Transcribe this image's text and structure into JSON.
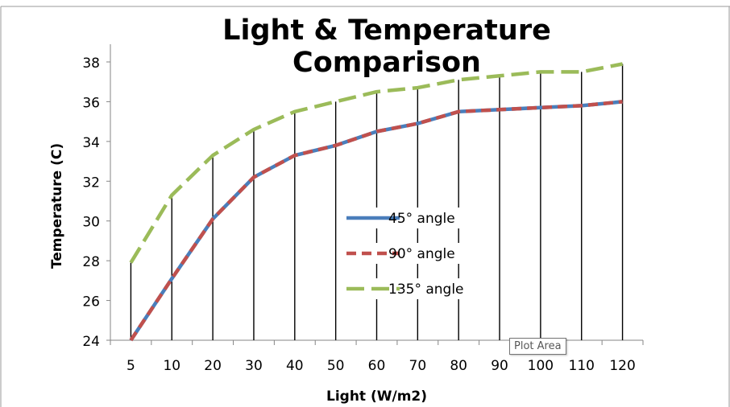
{
  "chart_data": {
    "type": "line",
    "title": "Light & Temperature Comparison",
    "xlabel": "Light (W/m2)",
    "ylabel": "Temperature  (C)",
    "categories": [
      "5",
      "10",
      "20",
      "30",
      "40",
      "50",
      "60",
      "70",
      "80",
      "90",
      "100",
      "110",
      "120"
    ],
    "ylim": [
      24,
      38
    ],
    "yticks": [
      24,
      26,
      28,
      30,
      32,
      34,
      36,
      38
    ],
    "grid": false,
    "drop_lines": true,
    "legend_position": "center",
    "series": [
      {
        "name": "45° angle",
        "color": "#4A7EBB",
        "dash": "solid",
        "values": [
          24.0,
          27.1,
          30.1,
          32.2,
          33.3,
          33.8,
          34.5,
          34.9,
          35.5,
          35.6,
          35.7,
          35.8,
          36.0
        ]
      },
      {
        "name": "90° angle",
        "color": "#C0504D",
        "dash": "short-dash",
        "values": [
          24.0,
          27.1,
          30.1,
          32.2,
          33.3,
          33.8,
          34.5,
          34.9,
          35.5,
          35.6,
          35.7,
          35.8,
          36.0
        ]
      },
      {
        "name": "135° angle",
        "color": "#9BBB59",
        "dash": "long-dash",
        "values": [
          27.9,
          31.3,
          33.3,
          34.6,
          35.5,
          36.0,
          36.5,
          36.7,
          37.1,
          37.3,
          37.5,
          37.5,
          37.9
        ]
      }
    ]
  },
  "tooltip": "Plot Area"
}
